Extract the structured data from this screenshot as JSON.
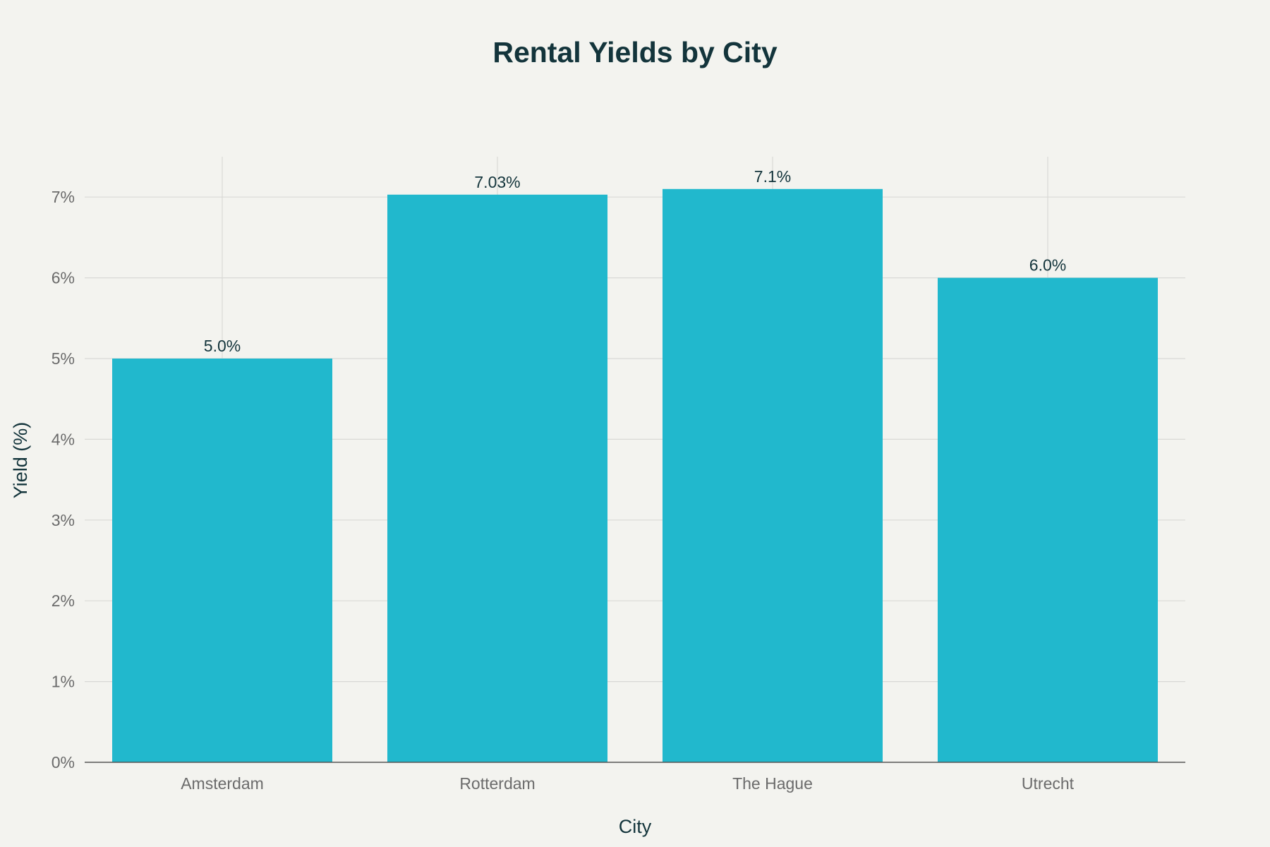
{
  "chart_data": {
    "type": "bar",
    "title": "Rental Yields by City",
    "xlabel": "City",
    "ylabel": "Yield (%)",
    "categories": [
      "Amsterdam",
      "Rotterdam",
      "The Hague",
      "Utrecht"
    ],
    "values": [
      5.0,
      7.03,
      7.1,
      6.0
    ],
    "data_labels": [
      "5.0%",
      "7.03%",
      "7.1%",
      "6.0%"
    ],
    "ylim": [
      0,
      7.5
    ],
    "yticks": [
      0,
      1,
      2,
      3,
      4,
      5,
      6,
      7
    ],
    "ytick_labels": [
      "0%",
      "1%",
      "2%",
      "3%",
      "4%",
      "5%",
      "6%",
      "7%"
    ],
    "grid": true,
    "legend": "none",
    "colors": {
      "bar": "#21b8cd",
      "background": "#f3f3ef",
      "title": "#13343b",
      "grid": "#d9d9d6",
      "tick_text": "#6b6b6b"
    }
  }
}
